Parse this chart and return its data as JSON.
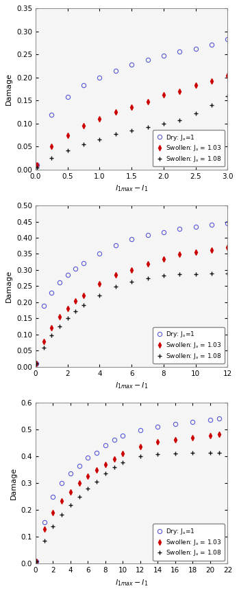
{
  "subplots": [
    {
      "xlim": [
        0,
        3
      ],
      "ylim": [
        0,
        0.35
      ],
      "xticks": [
        0,
        0.5,
        1.0,
        1.5,
        2.0,
        2.5,
        3.0
      ],
      "yticks": [
        0,
        0.05,
        0.1,
        0.15,
        0.2,
        0.25,
        0.3,
        0.35
      ],
      "dry_x": [
        0.02,
        0.25,
        0.5,
        0.75,
        1.0,
        1.25,
        1.5,
        1.75,
        2.0,
        2.25,
        2.5,
        2.75,
        3.0
      ],
      "dry_y": [
        0.01,
        0.12,
        0.158,
        0.184,
        0.2,
        0.215,
        0.228,
        0.238,
        0.248,
        0.256,
        0.263,
        0.272,
        0.283
      ],
      "sw103_x": [
        0.02,
        0.25,
        0.5,
        0.75,
        1.0,
        1.25,
        1.5,
        1.75,
        2.0,
        2.25,
        2.5,
        2.75,
        3.0
      ],
      "sw103_y": [
        0.01,
        0.05,
        0.075,
        0.095,
        0.11,
        0.125,
        0.135,
        0.148,
        0.163,
        0.17,
        0.183,
        0.192,
        0.205
      ],
      "sw108_x": [
        0.02,
        0.25,
        0.5,
        0.75,
        1.0,
        1.25,
        1.5,
        1.75,
        2.0,
        2.25,
        2.5,
        2.75,
        3.0
      ],
      "sw108_y": [
        0.005,
        0.025,
        0.042,
        0.055,
        0.065,
        0.077,
        0.085,
        0.093,
        0.1,
        0.107,
        0.123,
        0.14,
        0.16
      ]
    },
    {
      "xlim": [
        0,
        12
      ],
      "ylim": [
        0,
        0.5
      ],
      "xticks": [
        0,
        2,
        4,
        6,
        8,
        10,
        12
      ],
      "yticks": [
        0,
        0.05,
        0.1,
        0.15,
        0.2,
        0.25,
        0.3,
        0.35,
        0.4,
        0.45,
        0.5
      ],
      "dry_x": [
        0.05,
        0.5,
        1.0,
        1.5,
        2.0,
        2.5,
        3.0,
        4.0,
        5.0,
        6.0,
        7.0,
        8.0,
        9.0,
        10.0,
        11.0,
        12.0
      ],
      "dry_y": [
        0.01,
        0.19,
        0.23,
        0.262,
        0.285,
        0.305,
        0.322,
        0.352,
        0.377,
        0.395,
        0.408,
        0.418,
        0.427,
        0.435,
        0.44,
        0.445
      ],
      "sw103_x": [
        0.05,
        0.5,
        1.0,
        1.5,
        2.0,
        2.5,
        3.0,
        4.0,
        5.0,
        6.0,
        7.0,
        8.0,
        9.0,
        10.0,
        11.0,
        12.0
      ],
      "sw103_y": [
        0.01,
        0.078,
        0.12,
        0.155,
        0.18,
        0.203,
        0.222,
        0.258,
        0.285,
        0.3,
        0.32,
        0.335,
        0.348,
        0.355,
        0.362,
        0.37
      ],
      "sw108_x": [
        0.05,
        0.5,
        1.0,
        1.5,
        2.0,
        2.5,
        3.0,
        4.0,
        5.0,
        6.0,
        7.0,
        8.0,
        9.0,
        10.0,
        11.0,
        12.0
      ],
      "sw108_y": [
        0.01,
        0.06,
        0.098,
        0.125,
        0.15,
        0.172,
        0.192,
        0.222,
        0.248,
        0.263,
        0.275,
        0.283,
        0.287,
        0.288,
        0.289,
        0.289
      ]
    },
    {
      "xlim": [
        0,
        22
      ],
      "ylim": [
        0,
        0.6
      ],
      "xticks": [
        0,
        2,
        4,
        6,
        8,
        10,
        12,
        14,
        16,
        18,
        20,
        22
      ],
      "yticks": [
        0,
        0.1,
        0.2,
        0.3,
        0.4,
        0.5,
        0.6
      ],
      "dry_x": [
        0.05,
        1.0,
        2.0,
        3.0,
        4.0,
        5.0,
        6.0,
        7.0,
        8.0,
        9.0,
        10.0,
        12.0,
        14.0,
        16.0,
        18.0,
        20.0,
        21.0
      ],
      "dry_y": [
        0.01,
        0.155,
        0.25,
        0.3,
        0.335,
        0.365,
        0.395,
        0.413,
        0.44,
        0.462,
        0.476,
        0.497,
        0.51,
        0.52,
        0.528,
        0.535,
        0.54
      ],
      "sw103_x": [
        0.05,
        1.0,
        2.0,
        3.0,
        4.0,
        5.0,
        6.0,
        7.0,
        8.0,
        9.0,
        10.0,
        12.0,
        14.0,
        16.0,
        18.0,
        20.0,
        21.0
      ],
      "sw103_y": [
        0.01,
        0.128,
        0.19,
        0.235,
        0.268,
        0.3,
        0.325,
        0.348,
        0.37,
        0.39,
        0.41,
        0.435,
        0.455,
        0.462,
        0.47,
        0.478,
        0.482
      ],
      "sw108_x": [
        0.05,
        1.0,
        2.0,
        3.0,
        4.0,
        5.0,
        6.0,
        7.0,
        8.0,
        9.0,
        10.0,
        12.0,
        14.0,
        16.0,
        18.0,
        20.0,
        21.0
      ],
      "sw108_y": [
        0.01,
        0.085,
        0.138,
        0.183,
        0.218,
        0.25,
        0.28,
        0.305,
        0.335,
        0.358,
        0.378,
        0.4,
        0.408,
        0.41,
        0.412,
        0.413,
        0.413
      ]
    }
  ],
  "legend": {
    "dry_label": "Dry: J$_s$=1",
    "sw103_label": "Swollen: J$_s$ = 1.03",
    "sw108_label": "Swollen: J$_s$ = 1.08"
  },
  "dry_color": "#5555dd",
  "sw103_color": "#cc0000",
  "sw108_color": "#111111",
  "bg_color": "#f5f5f5",
  "legend_fontsize": 6.5,
  "axis_fontsize": 8,
  "tick_fontsize": 7.5
}
